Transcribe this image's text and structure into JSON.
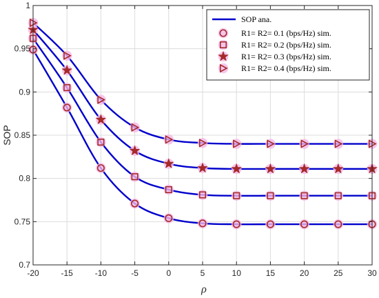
{
  "chart_data": {
    "type": "line",
    "xlabel": "ρ",
    "ylabel": "SOP",
    "xlim": [
      -20,
      30
    ],
    "ylim": [
      0.7,
      1.0
    ],
    "grid": true,
    "legend_position": "top-right",
    "x": [
      -20,
      -15,
      -10,
      -5,
      0,
      5,
      10,
      15,
      20,
      25,
      30
    ],
    "x_ticks": [
      "-20",
      "-15",
      "-10",
      "-5",
      "0",
      "5",
      "10",
      "15",
      "20",
      "25",
      "30"
    ],
    "y_ticks": [
      "0.7",
      "0.75",
      "0.8",
      "0.85",
      "0.9",
      "0.95",
      "1"
    ],
    "line_color": "#0000cc",
    "marker_color": "#a52a2a",
    "marker_halo_color": "#f4b6e6",
    "legend": {
      "analytic_label": "SOP ana.",
      "sim_labels": [
        "R1= R2= 0.1 (bps/Hz) sim.",
        "R1= R2= 0.2 (bps/Hz) sim.",
        "R1= R2= 0.3 (bps/Hz) sim.",
        "R1= R2= 0.4 (bps/Hz) sim."
      ]
    },
    "series": [
      {
        "name": "R1= R2= 0.1 (bps/Hz) sim.",
        "marker": "circle",
        "values": [
          0.949,
          0.882,
          0.812,
          0.771,
          0.754,
          0.748,
          0.747,
          0.747,
          0.747,
          0.747,
          0.747
        ]
      },
      {
        "name": "R1= R2= 0.2 (bps/Hz) sim.",
        "marker": "square",
        "values": [
          0.962,
          0.905,
          0.842,
          0.802,
          0.787,
          0.781,
          0.78,
          0.78,
          0.78,
          0.78,
          0.78
        ]
      },
      {
        "name": "R1= R2= 0.3 (bps/Hz) sim.",
        "marker": "star",
        "values": [
          0.972,
          0.925,
          0.868,
          0.832,
          0.817,
          0.812,
          0.811,
          0.811,
          0.811,
          0.811,
          0.811
        ]
      },
      {
        "name": "R1= R2= 0.4 (bps/Hz) sim.",
        "marker": "triangle-right",
        "values": [
          0.98,
          0.942,
          0.891,
          0.859,
          0.845,
          0.841,
          0.84,
          0.84,
          0.84,
          0.84,
          0.84
        ]
      }
    ]
  }
}
